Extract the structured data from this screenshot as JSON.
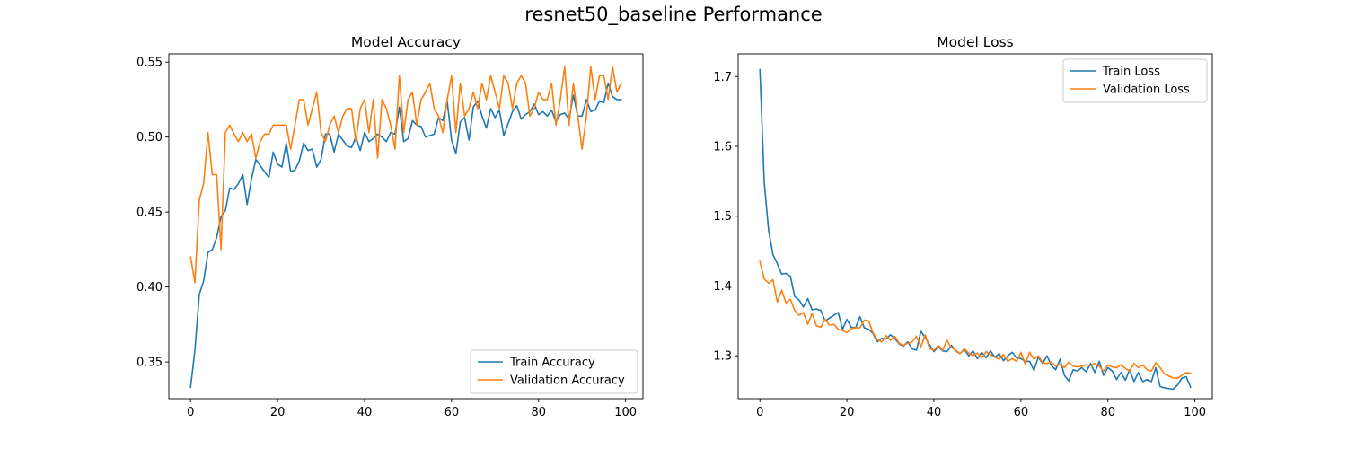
{
  "figure": {
    "title": "resnet50_baseline Performance"
  },
  "chart_data": [
    {
      "type": "line",
      "title": "Model Accuracy",
      "xlabel": "",
      "ylabel": "",
      "xlim": [
        -5,
        104
      ],
      "ylim": [
        0.3255,
        0.5555
      ],
      "xticks": [
        0,
        20,
        40,
        60,
        80,
        100
      ],
      "yticks": [
        0.35,
        0.4,
        0.45,
        0.5,
        0.55
      ],
      "ytick_labels": [
        "0.35",
        "0.40",
        "0.45",
        "0.50",
        "0.55"
      ],
      "grid": false,
      "legend": "lower-right",
      "x": [
        0,
        1,
        2,
        3,
        4,
        5,
        6,
        7,
        8,
        9,
        10,
        11,
        12,
        13,
        14,
        15,
        16,
        17,
        18,
        19,
        20,
        21,
        22,
        23,
        24,
        25,
        26,
        27,
        28,
        29,
        30,
        31,
        32,
        33,
        34,
        35,
        36,
        37,
        38,
        39,
        40,
        41,
        42,
        43,
        44,
        45,
        46,
        47,
        48,
        49,
        50,
        51,
        52,
        53,
        54,
        55,
        56,
        57,
        58,
        59,
        60,
        61,
        62,
        63,
        64,
        65,
        66,
        67,
        68,
        69,
        70,
        71,
        72,
        73,
        74,
        75,
        76,
        77,
        78,
        79,
        80,
        81,
        82,
        83,
        84,
        85,
        86,
        87,
        88,
        89,
        90,
        91,
        92,
        93,
        94,
        95,
        96,
        97,
        98,
        99
      ],
      "series": [
        {
          "name": "Train Accuracy",
          "color": "#1f77b4",
          "values": [
            0.333,
            0.358,
            0.395,
            0.404,
            0.423,
            0.425,
            0.433,
            0.447,
            0.451,
            0.466,
            0.465,
            0.469,
            0.475,
            0.455,
            0.472,
            0.485,
            0.481,
            0.477,
            0.473,
            0.49,
            0.482,
            0.48,
            0.496,
            0.477,
            0.478,
            0.484,
            0.496,
            0.491,
            0.492,
            0.48,
            0.485,
            0.502,
            0.502,
            0.49,
            0.502,
            0.498,
            0.494,
            0.493,
            0.5,
            0.491,
            0.503,
            0.497,
            0.499,
            0.502,
            0.5,
            0.497,
            0.503,
            0.502,
            0.52,
            0.497,
            0.499,
            0.511,
            0.508,
            0.507,
            0.5,
            0.501,
            0.502,
            0.513,
            0.511,
            0.524,
            0.498,
            0.489,
            0.51,
            0.513,
            0.498,
            0.52,
            0.524,
            0.514,
            0.506,
            0.519,
            0.513,
            0.518,
            0.501,
            0.509,
            0.517,
            0.521,
            0.512,
            0.515,
            0.517,
            0.522,
            0.515,
            0.517,
            0.514,
            0.518,
            0.51,
            0.515,
            0.516,
            0.512,
            0.528,
            0.514,
            0.514,
            0.525,
            0.517,
            0.518,
            0.524,
            0.523,
            0.536,
            0.527,
            0.525,
            0.525
          ]
        },
        {
          "name": "Validation Accuracy",
          "color": "#ff7f0e",
          "values": [
            0.42,
            0.403,
            0.458,
            0.469,
            0.503,
            0.475,
            0.475,
            0.425,
            0.503,
            0.508,
            0.502,
            0.497,
            0.503,
            0.497,
            0.502,
            0.486,
            0.497,
            0.502,
            0.502,
            0.508,
            0.508,
            0.508,
            0.508,
            0.492,
            0.508,
            0.525,
            0.525,
            0.508,
            0.519,
            0.53,
            0.503,
            0.497,
            0.508,
            0.514,
            0.503,
            0.514,
            0.519,
            0.519,
            0.497,
            0.519,
            0.525,
            0.503,
            0.525,
            0.486,
            0.525,
            0.519,
            0.508,
            0.492,
            0.541,
            0.503,
            0.525,
            0.53,
            0.508,
            0.525,
            0.53,
            0.536,
            0.519,
            0.514,
            0.503,
            0.525,
            0.541,
            0.503,
            0.536,
            0.514,
            0.519,
            0.53,
            0.519,
            0.536,
            0.525,
            0.541,
            0.53,
            0.519,
            0.541,
            0.536,
            0.519,
            0.536,
            0.541,
            0.536,
            0.514,
            0.519,
            0.53,
            0.525,
            0.525,
            0.536,
            0.508,
            0.525,
            0.547,
            0.508,
            0.536,
            0.514,
            0.492,
            0.514,
            0.547,
            0.525,
            0.541,
            0.541,
            0.525,
            0.547,
            0.53,
            0.536
          ]
        }
      ]
    },
    {
      "type": "line",
      "title": "Model Loss",
      "xlabel": "",
      "ylabel": "",
      "xlim": [
        -5,
        104
      ],
      "ylim": [
        1.2385,
        1.7325
      ],
      "xticks": [
        0,
        20,
        40,
        60,
        80,
        100
      ],
      "yticks": [
        1.3,
        1.4,
        1.5,
        1.6,
        1.7
      ],
      "ytick_labels": [
        "1.3",
        "1.4",
        "1.5",
        "1.6",
        "1.7"
      ],
      "grid": false,
      "legend": "upper-right",
      "x": [
        0,
        1,
        2,
        3,
        4,
        5,
        6,
        7,
        8,
        9,
        10,
        11,
        12,
        13,
        14,
        15,
        16,
        17,
        18,
        19,
        20,
        21,
        22,
        23,
        24,
        25,
        26,
        27,
        28,
        29,
        30,
        31,
        32,
        33,
        34,
        35,
        36,
        37,
        38,
        39,
        40,
        41,
        42,
        43,
        44,
        45,
        46,
        47,
        48,
        49,
        50,
        51,
        52,
        53,
        54,
        55,
        56,
        57,
        58,
        59,
        60,
        61,
        62,
        63,
        64,
        65,
        66,
        67,
        68,
        69,
        70,
        71,
        72,
        73,
        74,
        75,
        76,
        77,
        78,
        79,
        80,
        81,
        82,
        83,
        84,
        85,
        86,
        87,
        88,
        89,
        90,
        91,
        92,
        93,
        94,
        95,
        96,
        97,
        98,
        99
      ],
      "series": [
        {
          "name": "Train Loss",
          "color": "#1f77b4",
          "values": [
            1.71,
            1.548,
            1.48,
            1.445,
            1.432,
            1.417,
            1.418,
            1.414,
            1.385,
            1.38,
            1.37,
            1.382,
            1.366,
            1.367,
            1.365,
            1.35,
            1.354,
            1.358,
            1.362,
            1.338,
            1.352,
            1.341,
            1.34,
            1.356,
            1.34,
            1.338,
            1.332,
            1.32,
            1.325,
            1.324,
            1.33,
            1.325,
            1.317,
            1.314,
            1.32,
            1.31,
            1.308,
            1.335,
            1.326,
            1.316,
            1.306,
            1.313,
            1.307,
            1.306,
            1.315,
            1.307,
            1.303,
            1.309,
            1.3,
            1.307,
            1.296,
            1.305,
            1.297,
            1.307,
            1.298,
            1.303,
            1.293,
            1.3,
            1.305,
            1.297,
            1.296,
            1.292,
            1.292,
            1.279,
            1.298,
            1.289,
            1.3,
            1.286,
            1.28,
            1.295,
            1.272,
            1.264,
            1.28,
            1.278,
            1.283,
            1.277,
            1.289,
            1.276,
            1.292,
            1.272,
            1.283,
            1.278,
            1.266,
            1.276,
            1.265,
            1.28,
            1.263,
            1.276,
            1.263,
            1.266,
            1.263,
            1.283,
            1.256,
            1.254,
            1.253,
            1.252,
            1.258,
            1.268,
            1.27,
            1.255
          ]
        },
        {
          "name": "Validation Loss",
          "color": "#ff7f0e",
          "values": [
            1.435,
            1.41,
            1.404,
            1.409,
            1.377,
            1.394,
            1.376,
            1.381,
            1.365,
            1.358,
            1.362,
            1.345,
            1.361,
            1.343,
            1.341,
            1.352,
            1.344,
            1.345,
            1.338,
            1.336,
            1.333,
            1.339,
            1.34,
            1.34,
            1.351,
            1.35,
            1.333,
            1.323,
            1.32,
            1.329,
            1.322,
            1.328,
            1.318,
            1.315,
            1.318,
            1.32,
            1.328,
            1.313,
            1.33,
            1.31,
            1.308,
            1.315,
            1.308,
            1.322,
            1.312,
            1.308,
            1.303,
            1.31,
            1.304,
            1.3,
            1.304,
            1.297,
            1.306,
            1.302,
            1.298,
            1.295,
            1.302,
            1.292,
            1.296,
            1.292,
            1.305,
            1.288,
            1.305,
            1.295,
            1.3,
            1.29,
            1.289,
            1.291,
            1.285,
            1.288,
            1.283,
            1.291,
            1.285,
            1.284,
            1.285,
            1.287,
            1.286,
            1.289,
            1.285,
            1.278,
            1.287,
            1.284,
            1.283,
            1.287,
            1.282,
            1.278,
            1.289,
            1.283,
            1.287,
            1.28,
            1.278,
            1.29,
            1.283,
            1.274,
            1.271,
            1.268,
            1.268,
            1.272,
            1.276,
            1.275
          ]
        }
      ]
    }
  ]
}
